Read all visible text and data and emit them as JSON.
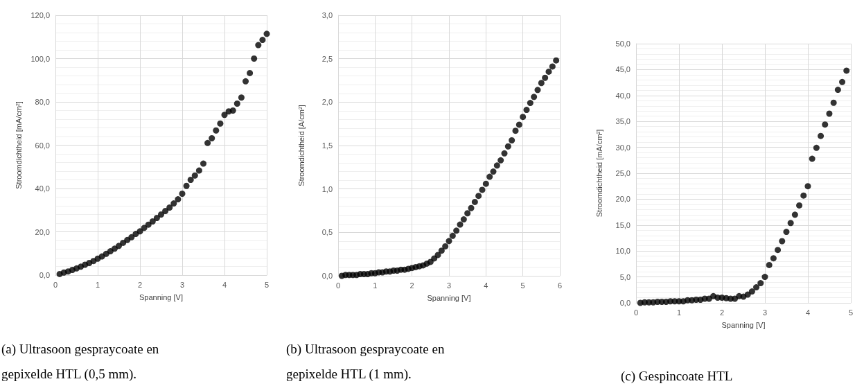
{
  "chart_data": [
    {
      "type": "scatter",
      "xlabel": "Spanning [V]",
      "ylabel": "Stroomdichtheid [mA/cm²]",
      "annotations": [
        "(a) Ultrasoon gespraycoate en gepixelde HTL (0,5 mm)."
      ],
      "marker": "circle",
      "grid": true,
      "xlim": [
        0,
        5
      ],
      "xticks": [
        0,
        1,
        2,
        3,
        4,
        5
      ],
      "ylim": [
        0,
        120
      ],
      "yticks": [
        {
          "value": 0,
          "label": "0,0"
        },
        {
          "value": 20,
          "label": "20,0"
        },
        {
          "value": 40,
          "label": "40,0"
        },
        {
          "value": 60,
          "label": "60,0"
        },
        {
          "value": 80,
          "label": "80,0"
        },
        {
          "value": 100,
          "label": "100,0"
        },
        {
          "value": 120,
          "label": "120,0"
        }
      ],
      "series": [
        {
          "color": "#000000",
          "x": [
            0.1,
            0.2,
            0.3,
            0.4,
            0.5,
            0.6,
            0.7,
            0.8,
            0.9,
            1.0,
            1.1,
            1.2,
            1.3,
            1.4,
            1.5,
            1.6,
            1.7,
            1.8,
            1.9,
            2.0,
            2.1,
            2.2,
            2.3,
            2.4,
            2.5,
            2.6,
            2.7,
            2.8,
            2.9,
            3.0,
            3.1,
            3.2,
            3.3,
            3.4,
            3.5,
            3.6,
            3.7,
            3.8,
            3.9,
            4.0,
            4.1,
            4.2,
            4.3,
            4.4,
            4.5,
            4.6,
            4.7,
            4.8,
            4.9,
            5.0
          ],
          "values": [
            0.5,
            1.2,
            1.7,
            2.4,
            3.1,
            3.9,
            4.8,
            5.6,
            6.5,
            7.6,
            8.6,
            9.8,
            11.0,
            12.2,
            13.5,
            14.9,
            16.2,
            17.5,
            19.0,
            20.2,
            21.8,
            23.3,
            24.8,
            26.4,
            28.0,
            29.6,
            31.2,
            33.1,
            35.0,
            37.6,
            41.2,
            44.0,
            46.0,
            48.3,
            51.5,
            61.0,
            63.2,
            66.8,
            70.0,
            74.0,
            75.6,
            76.0,
            79.2,
            82.0,
            89.5,
            93.3,
            100.0,
            106.2,
            108.6,
            111.4
          ]
        }
      ]
    },
    {
      "type": "scatter",
      "xlabel": "Spanning [V]",
      "ylabel": "Stroomdichtheid [A/cm²]",
      "annotations": [
        "(b) Ultrasoon gespraycoate en gepixelde HTL (1 mm)."
      ],
      "marker": "circle",
      "grid": true,
      "xlim": [
        0,
        6
      ],
      "xticks": [
        0,
        1,
        2,
        3,
        4,
        5,
        6
      ],
      "ylim": [
        0,
        3
      ],
      "yticks": [
        {
          "value": 0,
          "label": "0,0"
        },
        {
          "value": 0.5,
          "label": "0,5"
        },
        {
          "value": 1,
          "label": "1,0"
        },
        {
          "value": 1.5,
          "label": "1,5"
        },
        {
          "value": 2,
          "label": "2,0"
        },
        {
          "value": 2.5,
          "label": "2,5"
        },
        {
          "value": 3,
          "label": "3,0"
        }
      ],
      "series": [
        {
          "color": "#000000",
          "x": [
            0.1,
            0.2,
            0.3,
            0.4,
            0.5,
            0.6,
            0.7,
            0.8,
            0.9,
            1.0,
            1.1,
            1.2,
            1.3,
            1.4,
            1.5,
            1.6,
            1.7,
            1.8,
            1.9,
            2.0,
            2.1,
            2.2,
            2.3,
            2.4,
            2.5,
            2.6,
            2.7,
            2.8,
            2.9,
            3.0,
            3.1,
            3.2,
            3.3,
            3.4,
            3.5,
            3.6,
            3.7,
            3.8,
            3.9,
            4.0,
            4.1,
            4.2,
            4.3,
            4.4,
            4.5,
            4.6,
            4.7,
            4.8,
            4.9,
            5.0,
            5.1,
            5.2,
            5.3,
            5.4,
            5.5,
            5.6,
            5.7,
            5.8,
            5.9
          ],
          "values": [
            0.0,
            0.01,
            0.01,
            0.01,
            0.01,
            0.02,
            0.02,
            0.02,
            0.03,
            0.03,
            0.04,
            0.04,
            0.05,
            0.05,
            0.06,
            0.06,
            0.07,
            0.07,
            0.08,
            0.09,
            0.1,
            0.11,
            0.12,
            0.14,
            0.16,
            0.2,
            0.24,
            0.29,
            0.34,
            0.4,
            0.46,
            0.52,
            0.59,
            0.65,
            0.72,
            0.78,
            0.85,
            0.92,
            0.99,
            1.06,
            1.14,
            1.2,
            1.27,
            1.33,
            1.41,
            1.49,
            1.56,
            1.67,
            1.74,
            1.83,
            1.91,
            1.99,
            2.06,
            2.14,
            2.22,
            2.28,
            2.35,
            2.41,
            2.48
          ]
        }
      ]
    },
    {
      "type": "scatter",
      "xlabel": "Spanning [V]",
      "ylabel": "Stroomdichtheid [mA/cm²]",
      "annotations": [
        "(c) Gespincoate HTL"
      ],
      "marker": "circle",
      "grid": true,
      "xlim": [
        0,
        5
      ],
      "xticks": [
        0,
        1,
        2,
        3,
        4,
        5
      ],
      "ylim": [
        0,
        50
      ],
      "yticks": [
        {
          "value": 0,
          "label": "0,0"
        },
        {
          "value": 5,
          "label": "5,0"
        },
        {
          "value": 10,
          "label": "10,0"
        },
        {
          "value": 15,
          "label": "15,0"
        },
        {
          "value": 20,
          "label": "20,0"
        },
        {
          "value": 25,
          "label": "25,0"
        },
        {
          "value": 30,
          "label": "30,0"
        },
        {
          "value": 35,
          "label": "35,0"
        },
        {
          "value": 40,
          "label": "40,0"
        },
        {
          "value": 45,
          "label": "45,0"
        },
        {
          "value": 50,
          "label": "50,0"
        }
      ],
      "series": [
        {
          "color": "#000000",
          "x": [
            0.1,
            0.2,
            0.3,
            0.4,
            0.5,
            0.6,
            0.7,
            0.8,
            0.9,
            1.0,
            1.1,
            1.2,
            1.3,
            1.4,
            1.5,
            1.6,
            1.7,
            1.8,
            1.9,
            2.0,
            2.1,
            2.2,
            2.3,
            2.4,
            2.5,
            2.6,
            2.7,
            2.8,
            2.9,
            3.0,
            3.1,
            3.2,
            3.3,
            3.4,
            3.5,
            3.6,
            3.7,
            3.8,
            3.9,
            4.0,
            4.1,
            4.2,
            4.3,
            4.4,
            4.5,
            4.6,
            4.7,
            4.8,
            4.9
          ],
          "values": [
            0.0,
            0.1,
            0.1,
            0.1,
            0.2,
            0.2,
            0.2,
            0.3,
            0.3,
            0.3,
            0.3,
            0.5,
            0.5,
            0.6,
            0.6,
            0.8,
            0.8,
            1.3,
            1.0,
            1.0,
            0.9,
            0.8,
            0.8,
            1.3,
            1.2,
            1.6,
            2.2,
            3.0,
            3.8,
            5.0,
            7.3,
            8.6,
            10.2,
            11.9,
            13.7,
            15.4,
            17.0,
            18.8,
            20.7,
            22.5,
            27.8,
            29.9,
            32.2,
            34.4,
            36.5,
            38.6,
            41.1,
            42.6,
            44.8
          ]
        }
      ]
    }
  ]
}
